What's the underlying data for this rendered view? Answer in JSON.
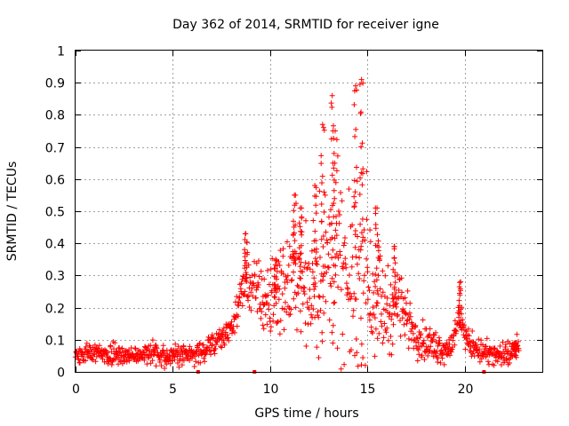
{
  "chart_data": {
    "type": "scatter",
    "title": "Day 362 of 2014, SRMTID for receiver igne",
    "xlabel": "GPS time / hours",
    "ylabel": "SRMTID / TECUs",
    "xlim": [
      0,
      24
    ],
    "ylim": [
      0,
      1
    ],
    "xticks": [
      0,
      5,
      10,
      15,
      20
    ],
    "yticks": [
      0,
      0.1,
      0.2,
      0.3,
      0.4,
      0.5,
      0.6,
      0.7,
      0.8,
      0.9,
      1
    ],
    "grid": true,
    "marker": "+",
    "color": "#ff0000",
    "series": [
      {
        "name": "SRMTID",
        "profile": {
          "x": [
            0,
            1,
            2,
            3,
            4,
            5,
            5.5,
            6,
            6.5,
            7,
            7.5,
            8,
            8.3,
            8.6,
            8.8,
            9,
            9.3,
            9.6,
            10,
            10.3,
            10.6,
            11,
            11.3,
            11.6,
            12,
            12.3,
            12.6,
            12.9,
            13.1,
            13.3,
            13.6,
            13.9,
            14.2,
            14.5,
            14.7,
            14.9,
            15.2,
            15.5,
            15.8,
            16.1,
            16.4,
            16.7,
            17,
            17.5,
            18,
            18.5,
            19,
            19.5,
            19.7,
            19.9,
            20.2,
            20.5,
            21,
            21.5,
            22,
            22.5,
            22.8
          ],
          "y": [
            0.05,
            0.06,
            0.055,
            0.05,
            0.06,
            0.05,
            0.06,
            0.05,
            0.07,
            0.08,
            0.1,
            0.14,
            0.19,
            0.25,
            0.3,
            0.27,
            0.24,
            0.23,
            0.21,
            0.24,
            0.26,
            0.28,
            0.31,
            0.3,
            0.26,
            0.28,
            0.3,
            0.31,
            0.33,
            0.36,
            0.3,
            0.26,
            0.28,
            0.34,
            0.37,
            0.33,
            0.28,
            0.24,
            0.2,
            0.19,
            0.2,
            0.23,
            0.17,
            0.12,
            0.09,
            0.08,
            0.07,
            0.1,
            0.17,
            0.14,
            0.09,
            0.08,
            0.06,
            0.05,
            0.05,
            0.06,
            0.07
          ]
        },
        "spread": {
          "x": [
            0,
            8,
            8.5,
            9,
            10,
            11,
            12,
            12.5,
            13,
            13.5,
            14,
            14.5,
            15,
            15.5,
            16,
            16.5,
            17,
            18,
            20,
            22.8
          ],
          "y": [
            0.02,
            0.03,
            0.05,
            0.07,
            0.09,
            0.11,
            0.14,
            0.2,
            0.24,
            0.22,
            0.18,
            0.25,
            0.2,
            0.14,
            0.1,
            0.09,
            0.06,
            0.04,
            0.03,
            0.03
          ]
        },
        "peaks": [
          {
            "x": 8.75,
            "y": 0.43
          },
          {
            "x": 10.3,
            "y": 0.35
          },
          {
            "x": 11.25,
            "y": 0.55
          },
          {
            "x": 11.55,
            "y": 0.51
          },
          {
            "x": 12.3,
            "y": 0.58
          },
          {
            "x": 12.7,
            "y": 0.77
          },
          {
            "x": 13.2,
            "y": 0.86
          },
          {
            "x": 13.35,
            "y": 0.75
          },
          {
            "x": 14.4,
            "y": 0.89
          },
          {
            "x": 14.7,
            "y": 0.91
          },
          {
            "x": 15.5,
            "y": 0.51
          },
          {
            "x": 16.4,
            "y": 0.39
          },
          {
            "x": 19.8,
            "y": 0.28
          },
          {
            "x": 22.6,
            "y": 0.09
          }
        ],
        "n_points": 1150
      }
    ],
    "outliers": [
      {
        "x": 6.3,
        "y": 0.0
      },
      {
        "x": 9.2,
        "y": 0.0
      },
      {
        "x": 21.0,
        "y": 0.0
      }
    ]
  }
}
